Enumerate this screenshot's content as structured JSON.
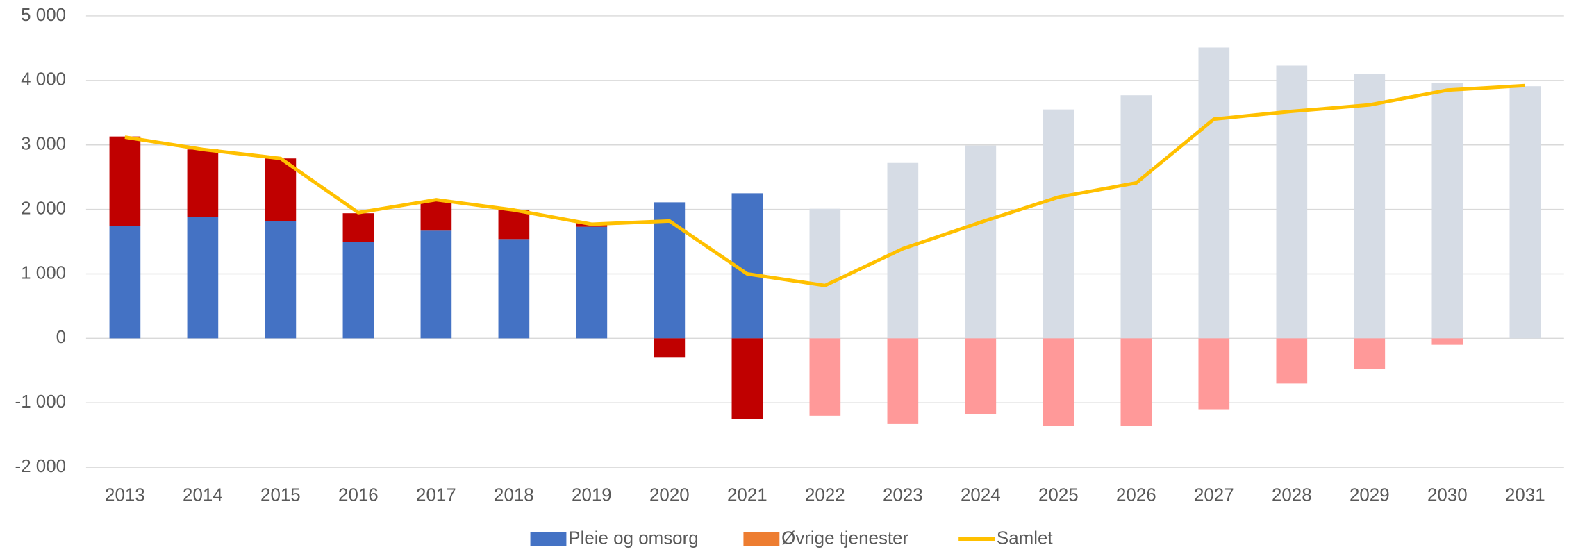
{
  "chart_data": {
    "type": "bar_line",
    "categories": [
      "2013",
      "2014",
      "2015",
      "2016",
      "2017",
      "2018",
      "2019",
      "2020",
      "2021",
      "2022",
      "2023",
      "2024",
      "2025",
      "2026",
      "2027",
      "2028",
      "2029",
      "2030",
      "2031"
    ],
    "series": [
      {
        "name": "Pleie og omsorg",
        "color": "#4472c4",
        "kind": "bar",
        "point_colors": [
          "#4472c4",
          "#4472c4",
          "#4472c4",
          "#4472c4",
          "#4472c4",
          "#4472c4",
          "#4472c4",
          "#4472c4",
          "#4472c4",
          "#d6dce5",
          "#d6dce5",
          "#d6dce5",
          "#d6dce5",
          "#d6dce5",
          "#d6dce5",
          "#d6dce5",
          "#d6dce5",
          "#d6dce5",
          "#d6dce5"
        ],
        "values": [
          1740,
          1880,
          1820,
          1500,
          1670,
          1540,
          1730,
          2110,
          2250,
          2010,
          2720,
          2990,
          3550,
          3770,
          4510,
          4230,
          4100,
          3960,
          3910
        ]
      },
      {
        "name": "Øvrige tjenester",
        "color": "#ed7d31",
        "kind": "bar",
        "point_colors": [
          "#c00000",
          "#c00000",
          "#c00000",
          "#c00000",
          "#c00000",
          "#c00000",
          "#c00000",
          "#c00000",
          "#c00000",
          "#ff9999",
          "#ff9999",
          "#ff9999",
          "#ff9999",
          "#ff9999",
          "#ff9999",
          "#ff9999",
          "#ff9999",
          "#ff9999",
          "#ff9999"
        ],
        "values": [
          1390,
          1050,
          970,
          440,
          460,
          450,
          60,
          -290,
          -1250,
          -1200,
          -1330,
          -1170,
          -1360,
          -1360,
          -1100,
          -700,
          -480,
          -100,
          0
        ]
      },
      {
        "name": "Samlet",
        "color": "#ffc000",
        "kind": "line",
        "values": [
          3120,
          2930,
          2790,
          1950,
          2150,
          1990,
          1770,
          1820,
          1000,
          820,
          1390,
          1800,
          2190,
          2410,
          3400,
          3520,
          3620,
          3850,
          3920
        ]
      }
    ],
    "ylim": [
      -2000,
      5000
    ],
    "yticks": [
      {
        "value": -2000,
        "label": "-2 000"
      },
      {
        "value": -1000,
        "label": "-1 000"
      },
      0,
      {
        "value": 1000,
        "label": "1 000"
      },
      {
        "value": 2000,
        "label": "2 000"
      },
      {
        "value": 3000,
        "label": "3 000"
      },
      {
        "value": 4000,
        "label": "4 000"
      },
      {
        "value": 5000,
        "label": "5 000"
      }
    ],
    "grid": true,
    "legend": "bottom"
  }
}
